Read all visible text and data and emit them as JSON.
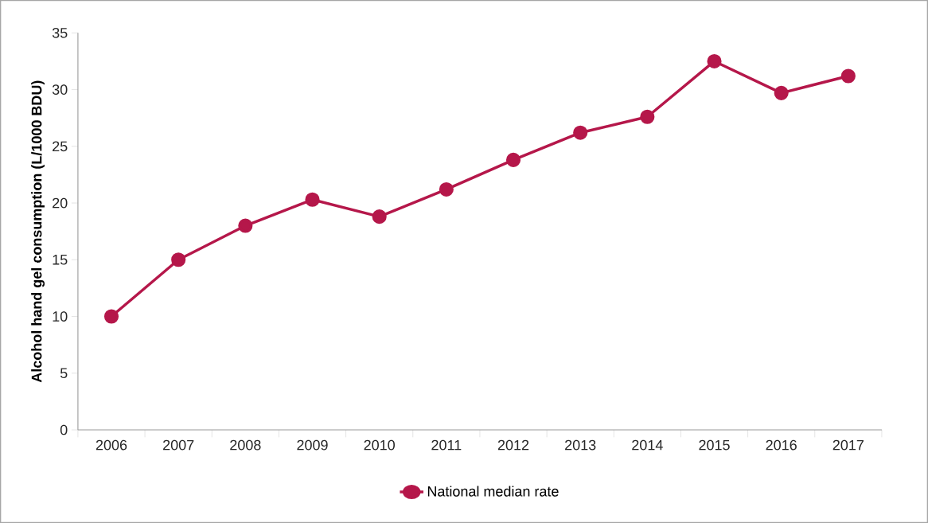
{
  "chart_data": {
    "type": "line",
    "ylabel": "Alcohol hand gel consumption (L/1000 BDU)",
    "categories": [
      "2006",
      "2007",
      "2008",
      "2009",
      "2010",
      "2011",
      "2012",
      "2013",
      "2014",
      "2015",
      "2016",
      "2017"
    ],
    "series": [
      {
        "name": "National median rate",
        "color": "#b5174a",
        "values": [
          10.0,
          15.0,
          18.0,
          20.3,
          18.8,
          21.2,
          23.8,
          26.2,
          27.6,
          32.5,
          29.7,
          31.2
        ]
      }
    ],
    "ylim": [
      0,
      35
    ],
    "yticks": [
      0,
      5,
      10,
      15,
      20,
      25,
      30,
      35
    ],
    "legend": "bottom",
    "marker": "circle",
    "line_style": "solid"
  }
}
